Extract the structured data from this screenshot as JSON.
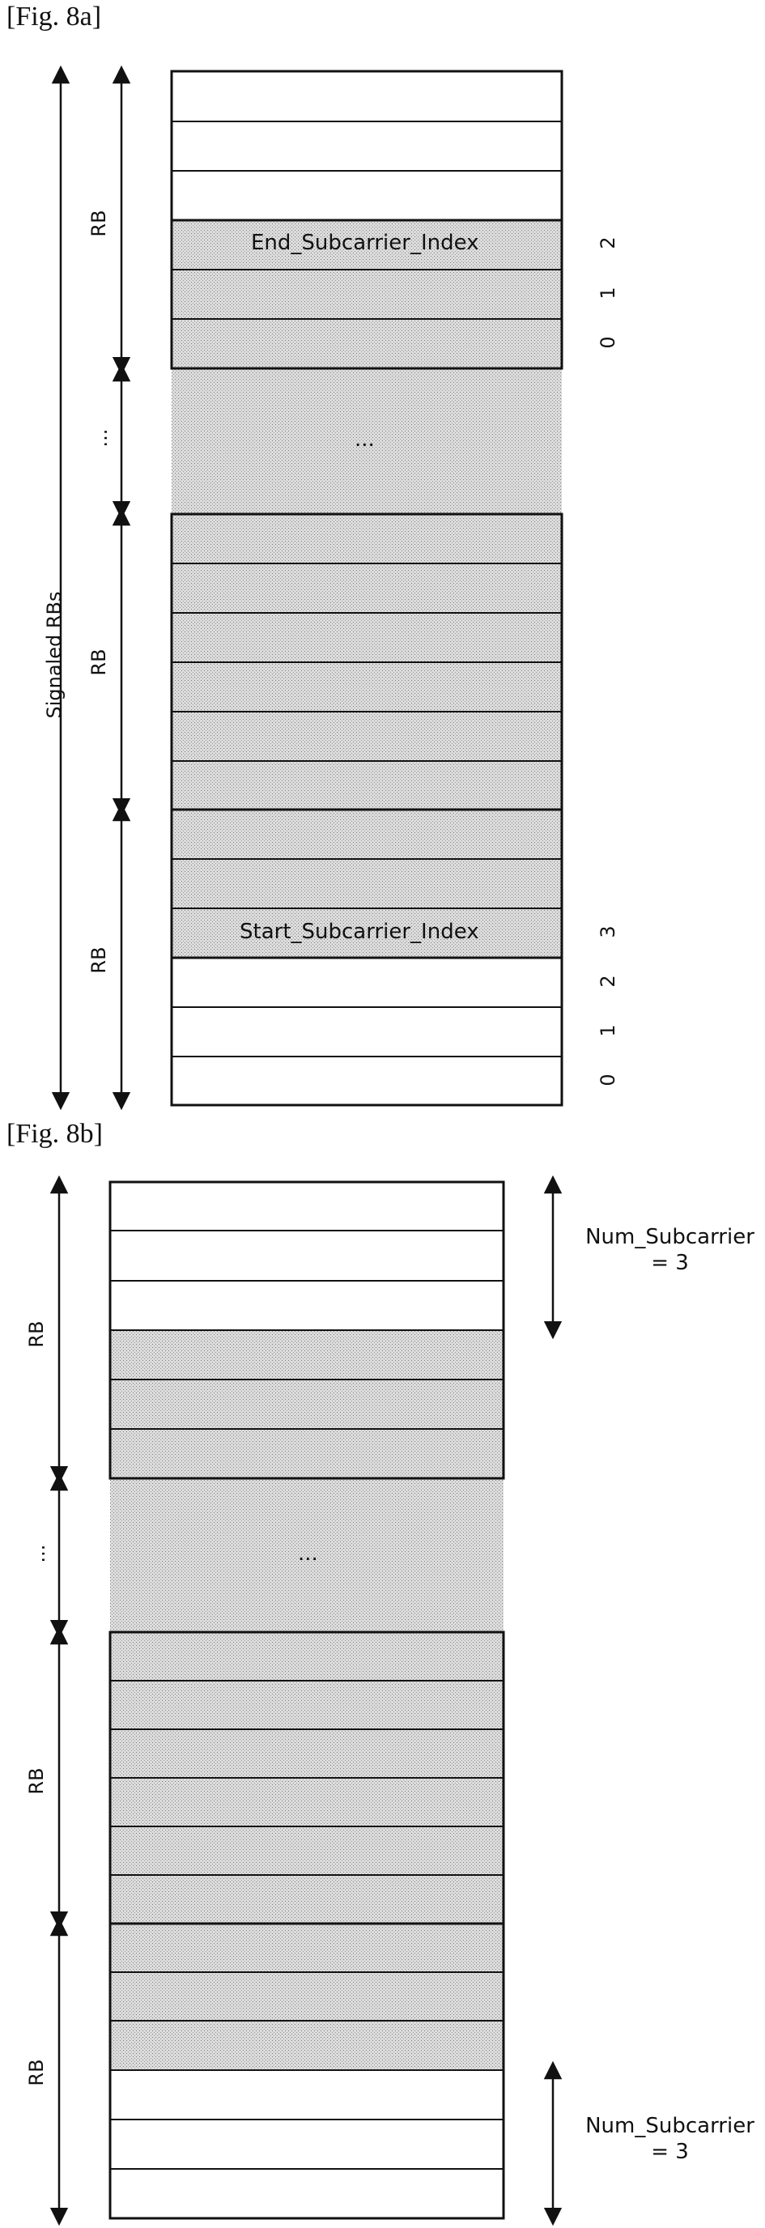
{
  "fig_8a": {
    "caption": "[Fig. 8a]",
    "signaled_label": "Signaled RBs",
    "rb_label": "RB",
    "ellipsis": "...",
    "end_subcarrier_label": "End_Subcarrier_Index",
    "start_subcarrier_label": "Start_Subcarrier_Index",
    "top_rb_indices": [
      "2",
      "1",
      "0"
    ],
    "bottom_rb_indices": [
      "3",
      "2",
      "1",
      "0"
    ]
  },
  "fig_8b": {
    "caption": "[Fig. 8b]",
    "rb_label": "RB",
    "ellipsis": "...",
    "num_subcarrier_top": [
      "Num_Subcarrier",
      "= 3"
    ],
    "num_subcarrier_bottom": [
      "Num_Subcarrier",
      "= 3"
    ]
  },
  "colors": {
    "stroke": "#111111",
    "shade": "#d7d7d7",
    "shade_dot": "#8a8a8a"
  }
}
